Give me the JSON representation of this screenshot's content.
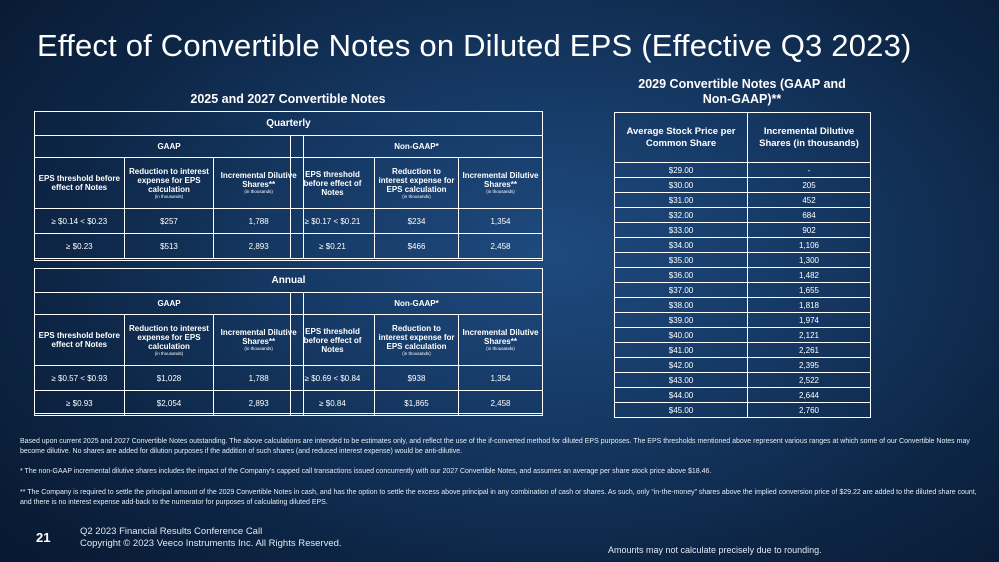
{
  "title": "Effect of Convertible Notes on Diluted EPS (Effective Q3 2023)",
  "left_section": {
    "title": "2025 and 2027 Convertible Notes",
    "quarterly": {
      "header": "Quarterly",
      "gaap": {
        "label": "GAAP",
        "col1": "EPS threshold before effect of Notes",
        "col2": "Reduction to interest expense for EPS calculation",
        "col2_sub": "(in thousands)",
        "col3": "Incremental Dilutive Shares**",
        "col3_sub": "(in thousands)",
        "rows": [
          {
            "threshold": "≥  $0.14 < $0.23",
            "reduction": "$257",
            "shares": "1,788"
          },
          {
            "threshold": "≥  $0.23",
            "reduction": "$513",
            "shares": "2,893"
          }
        ]
      },
      "nongaap": {
        "label": "Non-GAAP*",
        "col1": "EPS threshold before effect of Notes",
        "col2": "Reduction to interest expense for EPS calculation",
        "col2_sub": "(in thousands)",
        "col3": "Incremental Dilutive Shares**",
        "col3_sub": "(in thousands)",
        "rows": [
          {
            "threshold": "≥  $0.17 < $0.21",
            "reduction": "$234",
            "shares": "1,354"
          },
          {
            "threshold": "≥  $0.21",
            "reduction": "$466",
            "shares": "2,458"
          }
        ]
      }
    },
    "annual": {
      "header": "Annual",
      "gaap": {
        "label": "GAAP",
        "col1": "EPS threshold before effect of Notes",
        "col2": "Reduction to interest expense for EPS calculation",
        "col2_sub": "(in thousands)",
        "col3": "Incremental Dilutive Shares**",
        "col3_sub": "(in thousands)",
        "rows": [
          {
            "threshold": "≥  $0.57 < $0.93",
            "reduction": "$1,028",
            "shares": "1,788"
          },
          {
            "threshold": "≥  $0.93",
            "reduction": "$2,054",
            "shares": "2,893"
          }
        ]
      },
      "nongaap": {
        "label": "Non-GAAP*",
        "col1": "EPS threshold before effect of Notes",
        "col2": "Reduction to interest expense for EPS calculation",
        "col2_sub": "(in thousands)",
        "col3": "Incremental Dilutive Shares**",
        "col3_sub": "(in thousands)",
        "rows": [
          {
            "threshold": "≥  $0.69 < $0.84",
            "reduction": "$938",
            "shares": "1,354"
          },
          {
            "threshold": "≥  $0.84",
            "reduction": "$1,865",
            "shares": "2,458"
          }
        ]
      }
    }
  },
  "right_section": {
    "title_line1": "2029 Convertible Notes (GAAP and",
    "title_line2": "Non-GAAP)**",
    "col1": "Average Stock Price per Common Share",
    "col2": "Incremental Dilutive Shares (in thousands)",
    "rows": [
      {
        "price": "$29.00",
        "shares": "-"
      },
      {
        "price": "$30.00",
        "shares": "205"
      },
      {
        "price": "$31.00",
        "shares": "452"
      },
      {
        "price": "$32.00",
        "shares": "684"
      },
      {
        "price": "$33.00",
        "shares": "902"
      },
      {
        "price": "$34.00",
        "shares": "1,106"
      },
      {
        "price": "$35.00",
        "shares": "1,300"
      },
      {
        "price": "$36.00",
        "shares": "1,482"
      },
      {
        "price": "$37.00",
        "shares": "1,655"
      },
      {
        "price": "$38.00",
        "shares": "1,818"
      },
      {
        "price": "$39.00",
        "shares": "1,974"
      },
      {
        "price": "$40.00",
        "shares": "2,121"
      },
      {
        "price": "$41.00",
        "shares": "2,261"
      },
      {
        "price": "$42.00",
        "shares": "2,395"
      },
      {
        "price": "$43.00",
        "shares": "2,522"
      },
      {
        "price": "$44.00",
        "shares": "2,644"
      },
      {
        "price": "$45.00",
        "shares": "2,760"
      }
    ]
  },
  "notes": {
    "note1": "Based upon current 2025 and 2027 Convertible Notes outstanding. The above calculations are intended to be estimates only, and reflect the use of the if-converted method for diluted EPS purposes. The EPS thresholds mentioned above represent various ranges at which some of our Convertible Notes may become dilutive. No shares are added for dilution purposes if the addition of such shares (and reduced interest expense) would be anti-dilutive.",
    "note2": "* The non-GAAP incremental dilutive shares includes the impact of the Company's capped call transactions issued concurrently with our 2027 Convertible Notes, and assumes an average per share stock price above $18.46.",
    "note3": "** The Company is required to settle the principal amount of the 2029 Convertible Notes in cash, and has the option to settle the excess above principal in any combination of cash or shares. As such, only “in-the-money” shares above the implied conversion price of $29.22 are added to the diluted share count, and there is no interest expense add-back to the numerator for purposes of calculating diluted EPS."
  },
  "footer": {
    "page_number": "21",
    "line1": "Q2 2023 Financial Results Conference Call",
    "line2": "Copyright © 2023 Veeco Instruments Inc. All Rights Reserved.",
    "rounding": "Amounts may not calculate precisely due to rounding."
  }
}
